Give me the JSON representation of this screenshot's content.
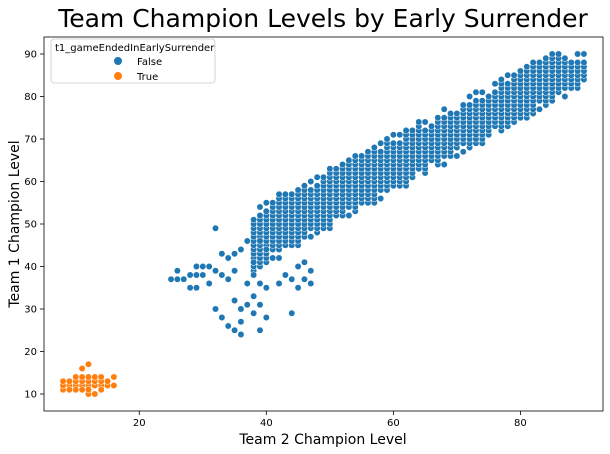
{
  "chart_data": {
    "type": "scatter",
    "title": "Team Champion Levels by Early Surrender",
    "xlabel": "Team 2 Champion Level",
    "ylabel": "Team 1 Champion Level",
    "xlim": [
      5,
      93
    ],
    "ylim": [
      6,
      94
    ],
    "xticks": [
      20,
      40,
      60,
      80
    ],
    "yticks": [
      10,
      20,
      30,
      40,
      50,
      60,
      70,
      80,
      90
    ],
    "grid": false,
    "legend": {
      "title": "t1_gameEndedInEarlySurrender",
      "placement": "top-left",
      "entries": [
        "False",
        "True"
      ]
    },
    "series": [
      {
        "name": "False",
        "color": "#1f77b4",
        "region": {
          "main_band": {
            "x_range": [
              38,
              90
            ],
            "upper_line": {
              "x": [
                40,
                85
              ],
              "y": [
                55,
                90
              ]
            },
            "lower_line": {
              "x": [
                45,
                90
              ],
              "y": [
                40,
                78
              ]
            }
          },
          "scattered_points": [
            [
              25,
              37
            ],
            [
              26,
              37
            ],
            [
              26,
              39
            ],
            [
              27,
              37
            ],
            [
              28,
              35
            ],
            [
              28,
              38
            ],
            [
              29,
              35
            ],
            [
              29,
              38
            ],
            [
              29,
              40
            ],
            [
              30,
              38
            ],
            [
              30,
              40
            ],
            [
              31,
              36
            ],
            [
              31,
              40
            ],
            [
              32,
              39
            ],
            [
              32,
              30
            ],
            [
              32,
              49
            ],
            [
              33,
              28
            ],
            [
              33,
              38
            ],
            [
              33,
              43
            ],
            [
              34,
              26
            ],
            [
              34,
              37
            ],
            [
              34,
              42
            ],
            [
              35,
              25
            ],
            [
              35,
              32
            ],
            [
              35,
              39
            ],
            [
              35,
              43
            ],
            [
              36,
              24
            ],
            [
              36,
              27
            ],
            [
              36,
              30
            ],
            [
              36,
              44
            ],
            [
              37,
              31
            ],
            [
              37,
              36
            ],
            [
              37,
              46
            ],
            [
              38,
              29
            ],
            [
              38,
              33
            ],
            [
              38,
              38
            ],
            [
              38,
              41
            ],
            [
              39,
              25
            ],
            [
              39,
              31
            ],
            [
              39,
              36
            ],
            [
              39,
              46
            ],
            [
              40,
              28
            ],
            [
              40,
              35
            ],
            [
              40,
              44
            ],
            [
              42,
              36
            ],
            [
              43,
              38
            ],
            [
              44,
              29
            ],
            [
              44,
              37
            ],
            [
              45,
              40
            ],
            [
              45,
              35
            ],
            [
              46,
              37
            ],
            [
              46,
              41
            ],
            [
              47,
              36
            ],
            [
              47,
              39
            ]
          ]
        }
      },
      {
        "name": "True",
        "color": "#ff7f0e",
        "points": [
          [
            8,
            11
          ],
          [
            8,
            12
          ],
          [
            8,
            13
          ],
          [
            9,
            12
          ],
          [
            9,
            13
          ],
          [
            9,
            11
          ],
          [
            10,
            12
          ],
          [
            10,
            13
          ],
          [
            10,
            14
          ],
          [
            10,
            11
          ],
          [
            11,
            12
          ],
          [
            11,
            13
          ],
          [
            11,
            14
          ],
          [
            11,
            16
          ],
          [
            11,
            11
          ],
          [
            12,
            10
          ],
          [
            12,
            12
          ],
          [
            12,
            13
          ],
          [
            12,
            14
          ],
          [
            12,
            17
          ],
          [
            12,
            11
          ],
          [
            13,
            12
          ],
          [
            13,
            13
          ],
          [
            13,
            14
          ],
          [
            13,
            10
          ],
          [
            14,
            12
          ],
          [
            14,
            13
          ],
          [
            14,
            11
          ],
          [
            14,
            14
          ],
          [
            15,
            12
          ],
          [
            15,
            13
          ],
          [
            16,
            12
          ],
          [
            16,
            14
          ]
        ]
      }
    ]
  }
}
